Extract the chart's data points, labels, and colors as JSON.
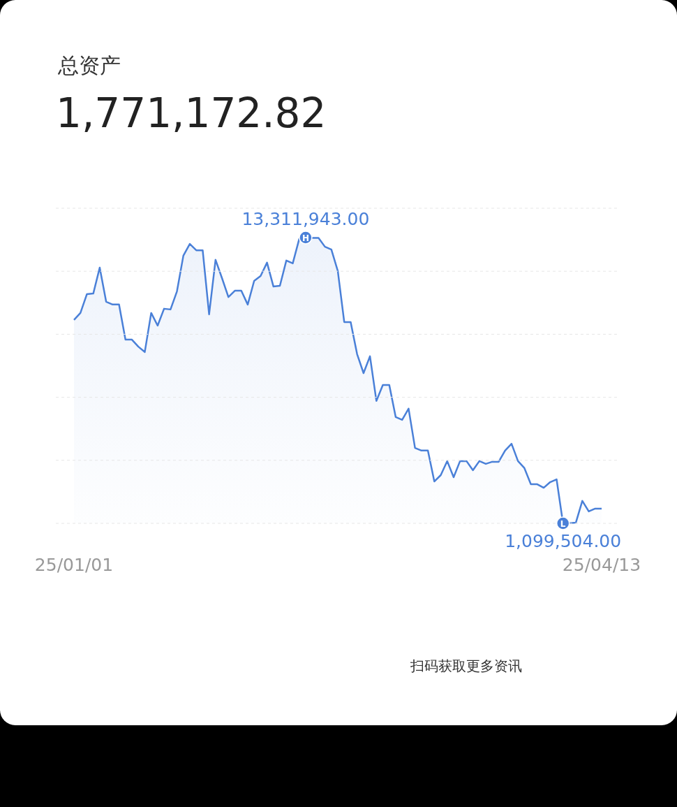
{
  "chart_data": {
    "type": "area",
    "title": "总资产",
    "subtitle": "1,771,172.82",
    "categories": [
      "25/01/01",
      null,
      null,
      null,
      null,
      null,
      null,
      null,
      null,
      null,
      null,
      null,
      null,
      null,
      null,
      null,
      null,
      null,
      null,
      null,
      null,
      null,
      null,
      null,
      null,
      null,
      null,
      null,
      null,
      null,
      null,
      null,
      null,
      null,
      null,
      null,
      null,
      null,
      null,
      null,
      null,
      null,
      null,
      null,
      null,
      null,
      null,
      null,
      null,
      null,
      null,
      null,
      null,
      null,
      null,
      null,
      null,
      null,
      null,
      null,
      null,
      null,
      null,
      null,
      null,
      null,
      null,
      null,
      null,
      null,
      null,
      null,
      null,
      null,
      null,
      null,
      null,
      null,
      null,
      null,
      null,
      null,
      "25/04/13"
    ],
    "values": [
      9790000,
      10090000,
      10890000,
      10920000,
      12030000,
      10570000,
      10450000,
      10450000,
      8950000,
      8950000,
      8650000,
      8420000,
      10090000,
      9550000,
      10270000,
      10240000,
      11010000,
      12540000,
      13040000,
      12770000,
      12770000,
      10030000,
      12360000,
      11580000,
      10770000,
      11040000,
      11040000,
      10450000,
      11460000,
      11670000,
      12240000,
      11220000,
      11250000,
      12330000,
      12210000,
      13250000,
      13311943,
      13300000,
      13300000,
      12920000,
      12800000,
      11880000,
      9700000,
      9700000,
      8330000,
      7520000,
      8240000,
      6330000,
      7010000,
      7010000,
      5640000,
      5520000,
      6000000,
      4320000,
      4210000,
      4210000,
      2890000,
      3160000,
      3760000,
      3070000,
      3760000,
      3760000,
      3370000,
      3760000,
      3640000,
      3730000,
      3730000,
      4210000,
      4500000,
      3760000,
      3460000,
      2770000,
      2770000,
      2620000,
      2860000,
      2980000,
      1099504,
      1110000,
      1130000,
      2060000,
      1610000,
      1730000,
      1730000
    ],
    "value_labels": [
      null,
      null,
      null,
      null,
      null,
      null,
      null,
      null,
      null,
      null,
      null,
      null,
      null,
      null,
      null,
      null,
      null,
      null,
      null,
      null,
      null,
      null,
      null,
      null,
      null,
      null,
      null,
      null,
      null,
      null,
      null,
      null,
      null,
      null,
      null,
      null,
      "13,311,943.00",
      null,
      null,
      null,
      null,
      null,
      null,
      null,
      null,
      null,
      null,
      null,
      null,
      null,
      null,
      null,
      null,
      null,
      null,
      null,
      null,
      null,
      null,
      null,
      null,
      null,
      null,
      null,
      null,
      null,
      null,
      null,
      null,
      null,
      null,
      null,
      null,
      null,
      null,
      null,
      "1,099,504.00",
      null,
      null,
      null,
      null,
      null,
      null
    ],
    "color": "#4a80d8",
    "ylim": [
      1099504,
      14566000
    ],
    "yticks": [
      {
        "value": 1099504,
        "label": null
      },
      {
        "value": 3792800,
        "label": null
      },
      {
        "value": 6486100,
        "label": null
      },
      {
        "value": 9179400,
        "label": null
      },
      {
        "value": 11872700,
        "label": null
      },
      {
        "value": 14566000,
        "label": null
      }
    ],
    "grid": "y",
    "tick_labels": "x",
    "annotations": [
      {
        "text": "H",
        "y": 13311943
      },
      {
        "text": "L",
        "y": 1099504
      },
      "扫码获取更多资讯"
    ]
  }
}
